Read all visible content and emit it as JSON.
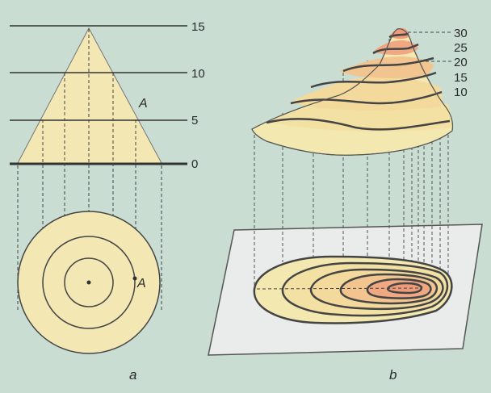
{
  "panel_a": {
    "caption": "a",
    "height_labels": [
      "15",
      "10",
      "5",
      "0"
    ],
    "point_label_side": "A",
    "point_label_plan": "A"
  },
  "panel_b": {
    "caption": "b",
    "height_labels": [
      "30",
      "25",
      "20",
      "15",
      "10"
    ]
  },
  "colors": {
    "background": "#c9ddd3",
    "cone_fill": "#f3e7b4",
    "hill_light": "#f3e8b0",
    "hill_dark": "#f0a882",
    "line": "#3a3a3a",
    "plane": "#e9ecea"
  }
}
